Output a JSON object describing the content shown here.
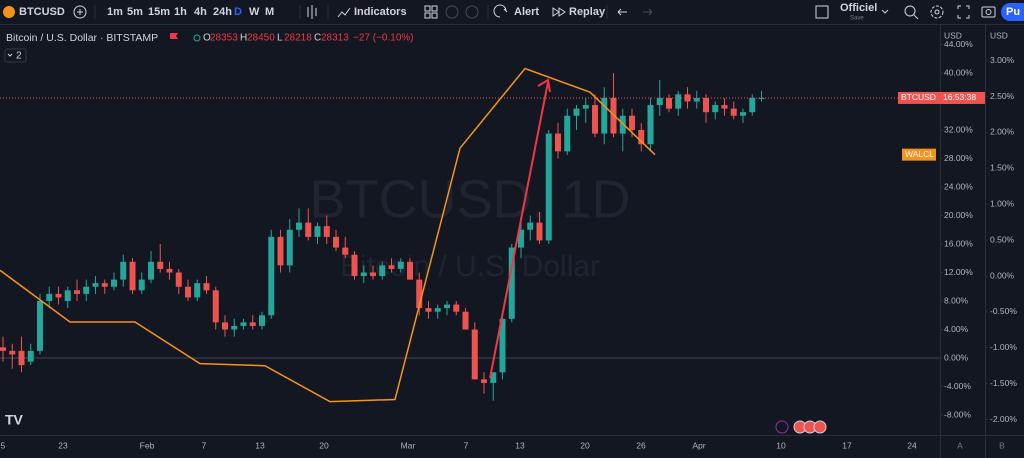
{
  "toolbar": {
    "symbol": "BTCUSD",
    "intervals": [
      "1m",
      "5m",
      "15m",
      "1h",
      "4h",
      "24h",
      "D",
      "W",
      "M"
    ],
    "indicators": "Indicators",
    "alert": "Alert",
    "replay": "Replay",
    "layout_name": "Officiel",
    "layout_status": "Save",
    "publish": "Pu"
  },
  "legend": {
    "title": "Bitcoin / U.S. Dollar · BITSTAMP",
    "ohlc": [
      {
        "label": "O",
        "value": 28353
      },
      {
        "label": "H",
        "value": 28450
      },
      {
        "label": "L",
        "value": 28218
      },
      {
        "label": "C",
        "value": 28313
      }
    ],
    "change": "−27 (−0.10%)",
    "indicator_count": "2"
  },
  "watermark": {
    "symbol": "BTCUSD, 1D",
    "name": "Bitcoin / U.S. Dollar"
  },
  "chart_data": {
    "type": "candlestick",
    "ylim": [
      -10.5,
      45
    ],
    "yticks": [
      {
        "value": 44,
        "label": "44.00%"
      },
      {
        "value": 40,
        "label": "40.00%"
      },
      {
        "value": 36,
        "label": "36.00%"
      },
      {
        "value": 32,
        "label": "32.00%"
      },
      {
        "value": 28,
        "label": "28.00%"
      },
      {
        "value": 24,
        "label": "24.00%"
      },
      {
        "value": 20,
        "label": "20.00%"
      },
      {
        "value": 16,
        "label": "16.00%"
      },
      {
        "value": 12,
        "label": "12.00%"
      },
      {
        "value": 8,
        "label": "8.00%"
      },
      {
        "value": 4,
        "label": "4.00%"
      },
      {
        "value": 0,
        "label": "0.00%"
      },
      {
        "value": -4,
        "label": "-4.00%"
      },
      {
        "value": -8,
        "label": "-8.00%"
      }
    ],
    "y2lim": [
      -2.3,
      3.2
    ],
    "y2ticks": [
      {
        "value": 3,
        "label": "3.00%"
      },
      {
        "value": 2.5,
        "label": "2.50%"
      },
      {
        "value": 2,
        "label": "2.00%"
      },
      {
        "value": 1.5,
        "label": "1.50%"
      },
      {
        "value": 1,
        "label": "1.00%"
      },
      {
        "value": 0.5,
        "label": "0.50%"
      },
      {
        "value": 0,
        "label": "0.00%"
      },
      {
        "value": -0.5,
        "label": "-0.50%"
      },
      {
        "value": -1,
        "label": "-1.00%"
      },
      {
        "value": -1.5,
        "label": "-1.50%"
      },
      {
        "value": -2,
        "label": "-2.00%"
      }
    ],
    "y_unit": "USD",
    "y2_unit": "USD",
    "x_labels": [
      "5",
      "23",
      "Feb",
      "7",
      "13",
      "20",
      "Mar",
      "7",
      "13",
      "20",
      "26",
      "Apr",
      "10",
      "17",
      "24"
    ],
    "up_color": "#26a69a",
    "down_color": "#ef5350",
    "candles": [
      [
        1.5,
        3,
        -0.5,
        1
      ],
      [
        1,
        2,
        -1.5,
        0.5
      ],
      [
        1,
        3,
        -2,
        -1
      ],
      [
        -0.5,
        2,
        -1,
        1
      ],
      [
        1,
        9,
        0.5,
        8
      ],
      [
        8,
        10,
        7,
        9
      ],
      [
        9,
        10,
        7.5,
        8.5
      ],
      [
        8,
        10,
        7,
        9.5
      ],
      [
        9.5,
        11,
        8,
        9
      ],
      [
        9,
        11,
        8,
        10
      ],
      [
        10,
        11.5,
        9,
        10.5
      ],
      [
        10.5,
        11,
        9,
        10
      ],
      [
        10,
        12,
        9.5,
        11
      ],
      [
        11,
        14.5,
        10,
        13.5
      ],
      [
        13.5,
        14,
        9,
        9.5
      ],
      [
        9.5,
        12,
        9,
        11
      ],
      [
        11,
        15,
        10.5,
        13.5
      ],
      [
        13.5,
        16,
        12,
        12.5
      ],
      [
        12.5,
        13.5,
        11,
        12
      ],
      [
        12,
        12.5,
        9,
        10
      ],
      [
        10,
        11,
        8,
        8.5
      ],
      [
        8.5,
        11,
        8,
        10.5
      ],
      [
        10.5,
        11.5,
        9,
        9.5
      ],
      [
        9.5,
        10,
        4,
        5
      ],
      [
        5,
        6,
        3,
        4
      ],
      [
        4,
        5.5,
        3,
        4.5
      ],
      [
        4.5,
        5.5,
        4,
        5
      ],
      [
        5,
        6,
        4,
        4.5
      ],
      [
        4.5,
        6.5,
        4,
        6
      ],
      [
        6,
        18,
        5.5,
        17
      ],
      [
        17,
        18,
        12,
        13
      ],
      [
        13,
        19.5,
        12,
        18
      ],
      [
        18,
        21,
        17,
        19
      ],
      [
        19,
        21,
        16.5,
        17
      ],
      [
        17,
        19,
        16,
        18.5
      ],
      [
        18.5,
        20,
        16,
        17
      ],
      [
        17,
        18,
        15,
        15.5
      ],
      [
        15.5,
        17,
        14,
        14.5
      ],
      [
        14.5,
        15,
        11,
        11.5
      ],
      [
        11.5,
        13,
        10.5,
        12
      ],
      [
        12,
        13,
        11,
        11.5
      ],
      [
        11.5,
        13.5,
        11,
        13
      ],
      [
        13,
        14,
        12,
        12.5
      ],
      [
        12.5,
        14,
        12,
        13.5
      ],
      [
        13.5,
        14,
        11,
        11
      ],
      [
        11,
        12,
        6,
        7
      ],
      [
        7,
        8,
        5.5,
        6.5
      ],
      [
        6.5,
        7.5,
        5.5,
        7
      ],
      [
        7,
        8,
        6,
        7.5
      ],
      [
        7.5,
        8,
        6,
        6.5
      ],
      [
        6.5,
        7,
        4,
        4
      ],
      [
        4,
        5,
        -3,
        -3
      ],
      [
        -3,
        -2,
        -5,
        -3.5
      ],
      [
        -3.5,
        -2,
        -6,
        -2
      ],
      [
        -2,
        6,
        -3,
        5.5
      ],
      [
        5.5,
        16,
        5,
        15.5
      ],
      [
        15.5,
        19,
        14,
        18
      ],
      [
        18,
        20,
        16.5,
        19
      ],
      [
        19,
        20.5,
        16,
        16.5
      ],
      [
        16.5,
        32,
        16,
        31.5
      ],
      [
        31.5,
        33,
        28,
        29
      ],
      [
        29,
        35,
        28.5,
        34
      ],
      [
        34,
        35.5,
        32,
        35
      ],
      [
        35,
        36.5,
        33,
        35.5
      ],
      [
        35.5,
        37,
        31,
        31.5
      ],
      [
        31.5,
        38,
        30,
        36.5
      ],
      [
        36.5,
        40,
        31,
        31.5
      ],
      [
        31.5,
        35,
        29,
        34
      ],
      [
        34,
        35,
        31,
        32
      ],
      [
        32,
        33,
        29,
        30
      ],
      [
        30,
        36.5,
        29,
        35.5
      ],
      [
        35.5,
        39,
        34,
        36.5
      ],
      [
        36.5,
        37,
        34.5,
        35
      ],
      [
        35,
        37.5,
        34,
        37
      ],
      [
        37,
        38,
        35,
        36
      ],
      [
        36,
        37.5,
        35,
        36.5
      ],
      [
        36.5,
        37,
        33,
        34.5
      ],
      [
        34.5,
        36,
        33.5,
        35.5
      ],
      [
        35.5,
        36.5,
        34,
        35
      ],
      [
        35,
        36,
        33.5,
        34
      ],
      [
        34,
        35,
        33,
        34.5
      ],
      [
        34.5,
        37,
        34,
        36.5
      ],
      [
        36.5,
        37.5,
        36,
        36.5
      ]
    ],
    "series": [
      {
        "name": "WALCL",
        "color": "#f7931a",
        "axis": "y2",
        "values": [
          0.08,
          -0.64,
          -0.64,
          -1.22,
          -1.25,
          -1.75,
          -1.72,
          1.78,
          2.89,
          2.56,
          1.69
        ]
      }
    ],
    "last_price_label": {
      "name": "BTCUSD",
      "countdown": "16:53:38"
    }
  },
  "status_badges": [
    "A",
    "B"
  ]
}
